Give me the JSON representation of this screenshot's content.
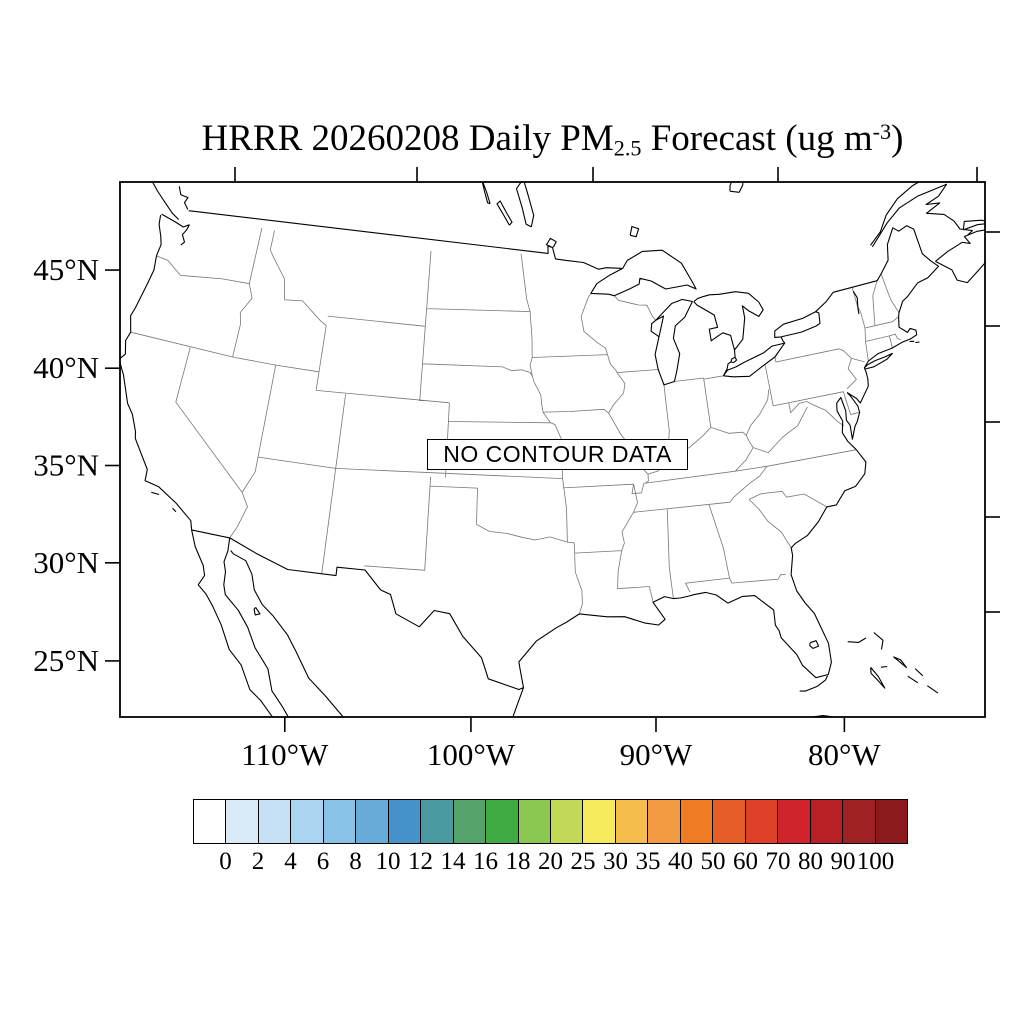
{
  "title": {
    "prefix": "HRRR 20260208 Daily PM",
    "sub": "2.5",
    "mid": " Forecast (ug m",
    "sup": "-3",
    "suffix": ")"
  },
  "map": {
    "no_data_label": "NO CONTOUR DATA",
    "lat_tick_labels": [
      "45°N",
      "40°N",
      "35°N",
      "30°N",
      "25°N"
    ],
    "lon_tick_labels": [
      "110°W",
      "100°W",
      "90°W",
      "80°W"
    ]
  },
  "colorbar": {
    "tick_labels": [
      "0",
      "2",
      "4",
      "6",
      "8",
      "10",
      "12",
      "14",
      "16",
      "18",
      "20",
      "25",
      "30",
      "35",
      "40",
      "50",
      "60",
      "70",
      "80",
      "90",
      "100"
    ],
    "colors": [
      "#ffffff",
      "#d9ebf8",
      "#c6e1f5",
      "#aad5f0",
      "#8ac2e6",
      "#68abd9",
      "#4892cb",
      "#4a9ba1",
      "#53a36b",
      "#41ab43",
      "#8cc751",
      "#c3d958",
      "#f5e95c",
      "#f4bd4c",
      "#f29a41",
      "#ef7c25",
      "#e75d28",
      "#de4127",
      "#d1232b",
      "#b72025",
      "#a02124",
      "#8c1a1d"
    ]
  },
  "chart_data": {
    "type": "map",
    "title": "HRRR 20260208 Daily PM2.5 Forecast (ug m-3)",
    "model": "HRRR",
    "run_date": "20260208",
    "variable": "Daily PM2.5 Forecast",
    "units": "ug m-3",
    "region": "Continental United States",
    "annotation": "NO CONTOUR DATA",
    "series": [],
    "colorbar_levels": [
      0,
      2,
      4,
      6,
      8,
      10,
      12,
      14,
      16,
      18,
      20,
      25,
      30,
      35,
      40,
      50,
      60,
      70,
      80,
      90,
      100
    ],
    "colorbar_colors": [
      "#ffffff",
      "#d9ebf8",
      "#c6e1f5",
      "#aad5f0",
      "#8ac2e6",
      "#68abd9",
      "#4892cb",
      "#4a9ba1",
      "#53a36b",
      "#41ab43",
      "#8cc751",
      "#c3d958",
      "#f5e95c",
      "#f4bd4c",
      "#f29a41",
      "#ef7c25",
      "#e75d28",
      "#de4127",
      "#d1232b",
      "#b72025",
      "#a02124",
      "#8c1a1d"
    ],
    "lat_ticks_deg_n": [
      45,
      40,
      35,
      30,
      25
    ],
    "lon_ticks_deg_w": [
      110,
      100,
      90,
      80
    ],
    "legend_position": "bottom",
    "grid": false
  }
}
